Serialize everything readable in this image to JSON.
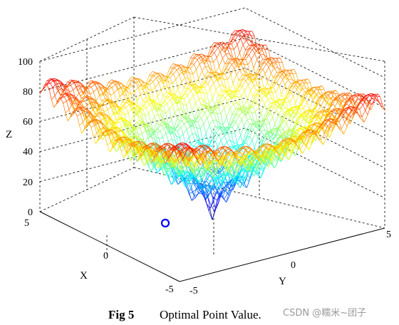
{
  "chart_data": {
    "type": "surface",
    "z_ticks": [
      "0",
      "20",
      "40",
      "60",
      "80",
      "100"
    ],
    "x_ticks": [
      "5",
      "0",
      "-5"
    ],
    "y_ticks": [
      "-5",
      "0",
      "5"
    ],
    "xlabel": "X",
    "ylabel": "Y",
    "zlabel": "Z",
    "x_range": [
      -5,
      5
    ],
    "y_range": [
      -5,
      5
    ],
    "z_range": [
      0,
      100
    ],
    "colormap": "jet",
    "grid": true,
    "optimal_point": {
      "x": 0,
      "y": 0,
      "z": 0,
      "marker": "circle",
      "color": "#0000ff"
    }
  },
  "caption": {
    "number": "Fig 5",
    "text": "Optimal Point Value."
  },
  "watermark": "CSDN @糯米~团子"
}
